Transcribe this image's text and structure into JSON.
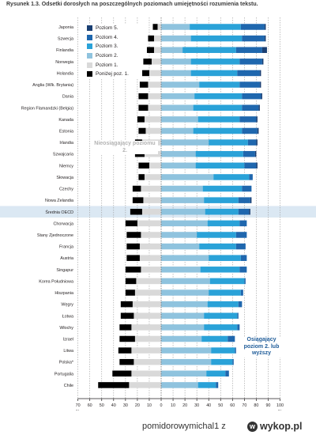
{
  "title": "Rysunek 1.3. Odsetki dorosłych na poszczególnych poziomach umiejętności rozumienia tekstu.",
  "chart_data": {
    "type": "bar",
    "orientation": "horizontal-diverging",
    "categories": [
      "Japonia",
      "Szwecja",
      "Finlandia",
      "Norwegia",
      "Holandia",
      "Anglia (Wlk. Brytania)",
      "Dania",
      "Region Flamandzki (Belgia)",
      "Kanada",
      "Estonia",
      "Irlandia",
      "Szwajcaria",
      "Niemcy",
      "Słowacja",
      "Czechy",
      "Nowa Zelandia",
      "Średnia OECD",
      "Chorwacja",
      "Stany Zjednoczone",
      "Francja",
      "Austria",
      "Singapur",
      "Korea Południowa",
      "Hiszpania",
      "Węgry",
      "Łotwa",
      "Włochy",
      "Izrael",
      "Litwa",
      "Polska*",
      "Portugalia",
      "Chile"
    ],
    "highlight_category": "Średnia OECD",
    "series": [
      {
        "name": "Poniżej poz. 1.",
        "color": "#000000",
        "side": "negative",
        "values": [
          4,
          5,
          6,
          7,
          7,
          7,
          8,
          8,
          6,
          6,
          6,
          8,
          9,
          5,
          7,
          9,
          10,
          10,
          12,
          11,
          11,
          13,
          9,
          8,
          10,
          11,
          10,
          13,
          11,
          12,
          16,
          26
        ]
      },
      {
        "name": "Poziom 1.",
        "color": "#d9d9d9",
        "side": "negative",
        "values": [
          3,
          6,
          6,
          8,
          10,
          11,
          11,
          11,
          14,
          13,
          16,
          14,
          10,
          14,
          17,
          15,
          16,
          20,
          17,
          18,
          18,
          17,
          21,
          22,
          24,
          23,
          25,
          22,
          25,
          23,
          25,
          27
        ]
      },
      {
        "name": "Poziom 2.",
        "color": "#8fc3de",
        "side": "positive",
        "values": [
          24,
          25,
          18,
          25,
          25,
          32,
          28,
          27,
          31,
          27,
          40,
          29,
          29,
          44,
          35,
          36,
          37,
          39,
          30,
          32,
          40,
          33,
          41,
          40,
          39,
          36,
          36,
          34,
          42,
          42,
          38,
          31
        ]
      },
      {
        "name": "Poziom 3.",
        "color": "#2aa2d8",
        "side": "positive",
        "values": [
          43,
          43,
          45,
          41,
          39,
          34,
          40,
          41,
          35,
          41,
          33,
          40,
          41,
          30,
          33,
          29,
          28,
          27,
          33,
          31,
          27,
          33,
          29,
          27,
          26,
          28,
          28,
          22,
          20,
          18,
          16,
          15
        ]
      },
      {
        "name": "Poziom 4.",
        "color": "#1f67ae",
        "side": "positive",
        "values": [
          20,
          19,
          22,
          19,
          19,
          17,
          16,
          14,
          14,
          13,
          7,
          10,
          10,
          3,
          8,
          10,
          9,
          6,
          9,
          8,
          5,
          6,
          1,
          2,
          3,
          1,
          2,
          6,
          1,
          1,
          3,
          2
        ]
      },
      {
        "name": "Poziom 5.",
        "color": "#1a3f73",
        "side": "positive",
        "values": [
          1,
          1,
          4,
          1,
          1,
          1,
          1,
          1,
          1,
          1,
          1,
          1,
          1,
          0,
          0,
          1,
          1,
          0,
          0,
          0,
          0,
          0,
          0,
          0,
          0,
          0,
          0,
          0,
          0,
          0,
          0,
          0
        ]
      }
    ],
    "x_ticks": [
      "70",
      "60",
      "50",
      "40",
      "30",
      "20",
      "10",
      "0",
      "10",
      "20",
      "30",
      "40",
      "50",
      "60",
      "70",
      "80",
      "90",
      "100"
    ],
    "x_unit": "%",
    "xlim": [
      -70,
      100
    ],
    "grid": "dashed vertical",
    "legend": {
      "position": "top-left",
      "order": [
        "Poziom 5.",
        "Poziom 4.",
        "Poziom 3.",
        "Poziom 2.",
        "Poziom 1.",
        "Poniżej poz. 1."
      ]
    },
    "annotations": {
      "left": "Nieosiągający poziomu 2.",
      "right": "Osiągający poziom 2. lub wyższy"
    }
  },
  "footer": {
    "user": "pomidorowymichal1",
    "separator": "z",
    "brand": "wykop.pl",
    "brand_icon": "w"
  }
}
